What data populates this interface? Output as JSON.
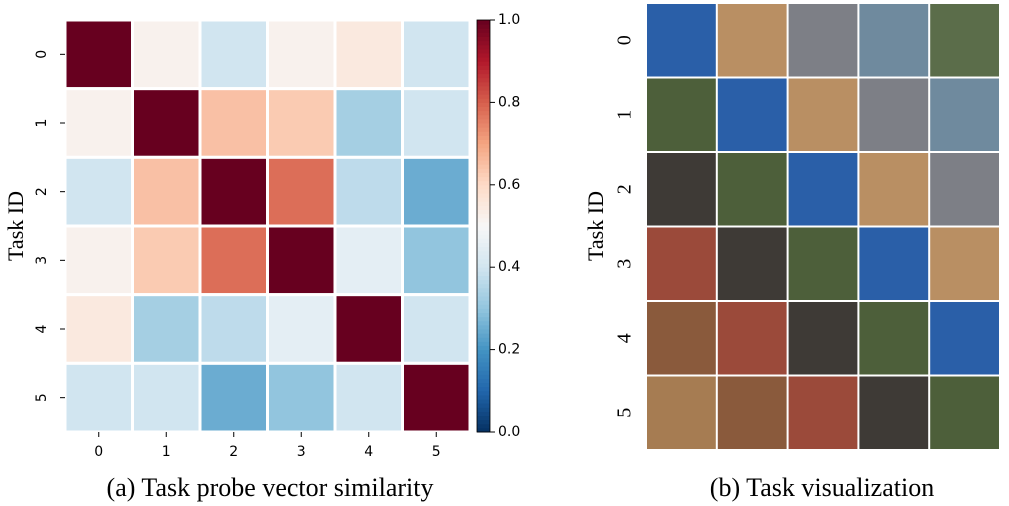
{
  "chart_data": [
    {
      "type": "heatmap",
      "x_categories": [
        "0",
        "1",
        "2",
        "3",
        "4",
        "5"
      ],
      "y_categories": [
        "0",
        "1",
        "2",
        "3",
        "4",
        "5"
      ],
      "ylabel": "Task ID",
      "values": [
        [
          1.0,
          0.52,
          0.4,
          0.52,
          0.55,
          0.4
        ],
        [
          0.52,
          1.0,
          0.65,
          0.63,
          0.33,
          0.4
        ],
        [
          0.4,
          0.65,
          1.0,
          0.78,
          0.37,
          0.25
        ],
        [
          0.52,
          0.63,
          0.78,
          1.0,
          0.45,
          0.3
        ],
        [
          0.55,
          0.33,
          0.37,
          0.45,
          1.0,
          0.4
        ],
        [
          0.4,
          0.4,
          0.25,
          0.3,
          0.4,
          1.0
        ]
      ],
      "colormap": "RdBu_r",
      "clim": [
        0,
        1
      ],
      "cticks": [
        {
          "value": 0,
          "label": "0.0"
        },
        0.2,
        0.4,
        0.6,
        0.8,
        {
          "value": 1,
          "label": "1.0"
        }
      ],
      "caption": "(a)  Task probe vector similarity"
    },
    {
      "type": "image-grid",
      "ylabel": "Task ID",
      "rows": [
        "0",
        "1",
        "2",
        "3",
        "4",
        "5"
      ],
      "caption": "(b) Task visualization"
    }
  ]
}
